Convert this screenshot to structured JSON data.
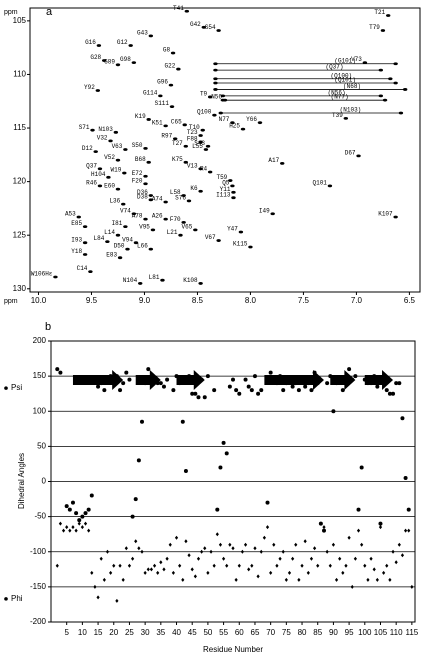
{
  "chart_data": [
    {
      "type": "scatter",
      "panel": "a",
      "xlabel": "ppm",
      "ylabel": "ppm",
      "xlim": [
        10.08,
        6.4
      ],
      "ylim": [
        103.8,
        130.3
      ],
      "xticks": [
        {
          "value": 10,
          "label": "10.0"
        },
        9.5,
        {
          "value": 9,
          "label": "9.0"
        },
        8.5,
        {
          "value": 8,
          "label": "8.0"
        },
        7.5,
        {
          "value": 7,
          "label": "7.0"
        },
        6.5
      ],
      "yticks": [
        105,
        110,
        115,
        120,
        125,
        130
      ],
      "peaks": [
        {
          "label": "T41",
          "x": 8.6,
          "y": 104.1
        },
        {
          "label": "T21",
          "x": 6.7,
          "y": 104.5
        },
        {
          "label": "G42",
          "x": 8.44,
          "y": 105.6
        },
        {
          "label": "S54",
          "x": 8.3,
          "y": 105.9
        },
        {
          "label": "T79",
          "x": 6.75,
          "y": 105.9
        },
        {
          "label": "G43",
          "x": 8.94,
          "y": 106.4
        },
        {
          "label": "G16",
          "x": 9.43,
          "y": 107.3
        },
        {
          "label": "G12",
          "x": 9.13,
          "y": 107.3
        },
        {
          "label": "G8",
          "x": 8.73,
          "y": 108.0
        },
        {
          "label": "G28",
          "x": 9.38,
          "y": 108.7
        },
        {
          "label": "G98",
          "x": 9.1,
          "y": 108.9
        },
        {
          "label": "G89",
          "x": 9.25,
          "y": 109.1
        },
        {
          "label": "V73",
          "x": 6.92,
          "y": 108.9
        },
        {
          "label": "G22",
          "x": 8.68,
          "y": 109.5
        },
        {
          "label": "G96",
          "x": 8.75,
          "y": 111.0
        },
        {
          "label": "Y92",
          "x": 9.44,
          "y": 111.5
        },
        {
          "label": "G114",
          "x": 8.85,
          "y": 112.0
        },
        {
          "label": "T9",
          "x": 8.38,
          "y": 112.1
        },
        {
          "label": "N56",
          "x": 8.24,
          "y": 112.4
        },
        {
          "label": "S111",
          "x": 8.74,
          "y": 113.0
        },
        {
          "label": "Q100",
          "x": 8.34,
          "y": 113.8
        },
        {
          "label": "T39",
          "x": 7.1,
          "y": 114.1
        },
        {
          "label": "K19",
          "x": 8.96,
          "y": 114.2
        },
        {
          "label": "N77",
          "x": 8.17,
          "y": 114.5
        },
        {
          "label": "Y66",
          "x": 7.91,
          "y": 114.5
        },
        {
          "label": "C65",
          "x": 8.62,
          "y": 114.7
        },
        {
          "label": "K51",
          "x": 8.8,
          "y": 114.8
        },
        {
          "label": "H25",
          "x": 8.07,
          "y": 115.1
        },
        {
          "label": "T10",
          "x": 8.45,
          "y": 115.2
        },
        {
          "label": "S71",
          "x": 9.49,
          "y": 115.2
        },
        {
          "label": "N103",
          "x": 9.27,
          "y": 115.4
        },
        {
          "label": "T23",
          "x": 8.47,
          "y": 115.7
        },
        {
          "label": "R97",
          "x": 8.71,
          "y": 116.0
        },
        {
          "label": "V32",
          "x": 9.32,
          "y": 116.2
        },
        {
          "label": "F88",
          "x": 8.47,
          "y": 116.3
        },
        {
          "label": "T27",
          "x": 8.61,
          "y": 116.7
        },
        {
          "label": "S43",
          "x": 8.4,
          "y": 116.7
        },
        {
          "label": "S50",
          "x": 8.99,
          "y": 116.9
        },
        {
          "label": "V63",
          "x": 9.18,
          "y": 117.0
        },
        {
          "label": "L55",
          "x": 8.42,
          "y": 117.0
        },
        {
          "label": "D12",
          "x": 9.46,
          "y": 117.2
        },
        {
          "label": "D67",
          "x": 6.98,
          "y": 117.6
        },
        {
          "label": "V52",
          "x": 9.25,
          "y": 118.0
        },
        {
          "label": "B68",
          "x": 8.96,
          "y": 118.2
        },
        {
          "label": "K75",
          "x": 8.61,
          "y": 118.2
        },
        {
          "label": "A17",
          "x": 7.7,
          "y": 118.3
        },
        {
          "label": "Q37",
          "x": 9.42,
          "y": 118.8
        },
        {
          "label": "V13",
          "x": 8.47,
          "y": 118.8
        },
        {
          "label": "R4",
          "x": 8.38,
          "y": 119.1
        },
        {
          "label": "W19",
          "x": 9.19,
          "y": 119.2
        },
        {
          "label": "E72",
          "x": 8.99,
          "y": 119.5
        },
        {
          "label": "H104",
          "x": 9.34,
          "y": 119.6
        },
        {
          "label": "T59",
          "x": 8.19,
          "y": 119.9
        },
        {
          "label": "F20",
          "x": 8.99,
          "y": 120.2
        },
        {
          "label": "Q101",
          "x": 7.25,
          "y": 120.4
        },
        {
          "label": "R46",
          "x": 9.42,
          "y": 120.4
        },
        {
          "label": "Q5",
          "x": 8.17,
          "y": 120.4
        },
        {
          "label": "E60",
          "x": 9.25,
          "y": 120.7
        },
        {
          "label": "K6",
          "x": 8.47,
          "y": 120.9
        },
        {
          "label": "Y11",
          "x": 8.16,
          "y": 121.0
        },
        {
          "label": "D36",
          "x": 8.94,
          "y": 121.3
        },
        {
          "label": "L58",
          "x": 8.63,
          "y": 121.3
        },
        {
          "label": "I113",
          "x": 8.16,
          "y": 121.5
        },
        {
          "label": "D38",
          "x": 8.94,
          "y": 121.7
        },
        {
          "label": "S76",
          "x": 8.58,
          "y": 121.8
        },
        {
          "label": "A74",
          "x": 8.8,
          "y": 121.9
        },
        {
          "label": "L36",
          "x": 9.2,
          "y": 122.1
        },
        {
          "label": "V74",
          "x": 9.1,
          "y": 123.0
        },
        {
          "label": "I49",
          "x": 7.79,
          "y": 123.0
        },
        {
          "label": "A53",
          "x": 9.62,
          "y": 123.3
        },
        {
          "label": "K107",
          "x": 6.63,
          "y": 123.3
        },
        {
          "label": "A78",
          "x": 8.99,
          "y": 123.5
        },
        {
          "label": "A26",
          "x": 8.8,
          "y": 123.5
        },
        {
          "label": "F70",
          "x": 8.63,
          "y": 123.8
        },
        {
          "label": "E85",
          "x": 9.56,
          "y": 124.2
        },
        {
          "label": "I81",
          "x": 9.18,
          "y": 124.2
        },
        {
          "label": "V95",
          "x": 8.92,
          "y": 124.5
        },
        {
          "label": "V65",
          "x": 8.52,
          "y": 124.5
        },
        {
          "label": "Y47",
          "x": 8.09,
          "y": 124.7
        },
        {
          "label": "L14",
          "x": 9.25,
          "y": 125.0
        },
        {
          "label": "L21",
          "x": 8.66,
          "y": 125.0
        },
        {
          "label": "V67",
          "x": 8.3,
          "y": 125.5
        },
        {
          "label": "L84",
          "x": 9.35,
          "y": 125.6
        },
        {
          "label": "I93",
          "x": 9.56,
          "y": 125.7
        },
        {
          "label": "V94",
          "x": 9.08,
          "y": 125.7
        },
        {
          "label": "K115",
          "x": 8.0,
          "y": 126.1
        },
        {
          "label": "D50",
          "x": 9.16,
          "y": 126.3
        },
        {
          "label": "L66",
          "x": 8.94,
          "y": 126.3
        },
        {
          "label": "Y18",
          "x": 9.56,
          "y": 126.8
        },
        {
          "label": "E83",
          "x": 9.23,
          "y": 127.1
        },
        {
          "label": "C14",
          "x": 9.51,
          "y": 128.4
        },
        {
          "label": "W106Hε",
          "x": 9.84,
          "y": 128.9
        },
        {
          "label": "L81",
          "x": 8.83,
          "y": 129.2
        },
        {
          "label": "N104",
          "x": 9.04,
          "y": 129.5
        },
        {
          "label": "K108",
          "x": 8.47,
          "y": 129.5
        }
      ],
      "sidechain_pairs": [
        {
          "label": "(G101)",
          "x": [
            8.33,
            6.63
          ],
          "y": 109.0
        },
        {
          "label": "(Q37)",
          "x": [
            8.33,
            6.77
          ],
          "y": 109.6
        },
        {
          "label": "(Q100)",
          "x": [
            8.33,
            6.68
          ],
          "y": 110.4
        },
        {
          "label": "(Q101)",
          "x": [
            8.33,
            6.63
          ],
          "y": 110.8
        },
        {
          "label": "(N68)",
          "x": [
            8.33,
            6.54
          ],
          "y": 111.4
        },
        {
          "label": "(N56)",
          "x": [
            8.26,
            6.77
          ],
          "y": 112.0
        },
        {
          "label": "(N77)",
          "x": [
            8.26,
            6.73
          ],
          "y": 112.4
        },
        {
          "label": "(N103)",
          "x": [
            8.28,
            6.58
          ],
          "y": 113.6
        }
      ]
    },
    {
      "type": "scatter",
      "panel": "b",
      "xlabel": "Residue Number",
      "ylabel": "Dihedral Angles",
      "xlim": [
        0,
        116
      ],
      "ylim": [
        -200,
        200
      ],
      "xticks": [
        5,
        10,
        15,
        20,
        25,
        30,
        35,
        40,
        45,
        50,
        55,
        60,
        65,
        70,
        75,
        80,
        85,
        90,
        95,
        100,
        105,
        110,
        115
      ],
      "yticks": [
        200,
        150,
        100,
        50,
        0,
        -50,
        -100,
        -150,
        -200
      ],
      "grid": [
        150,
        100,
        50,
        0,
        -50,
        -100,
        -150
      ],
      "strands": [
        [
          7,
          23
        ],
        [
          27,
          35
        ],
        [
          40,
          49
        ],
        [
          68,
          87
        ],
        [
          89,
          97
        ],
        [
          100,
          109
        ]
      ],
      "x": [
        1,
        2,
        3,
        4,
        5,
        6,
        7,
        8,
        9,
        10,
        11,
        12,
        13,
        14,
        15,
        16,
        17,
        18,
        19,
        20,
        21,
        22,
        23,
        24,
        25,
        26,
        27,
        28,
        29,
        30,
        31,
        32,
        33,
        34,
        35,
        36,
        37,
        38,
        39,
        40,
        41,
        42,
        43,
        44,
        45,
        46,
        47,
        48,
        49,
        50,
        51,
        52,
        53,
        54,
        55,
        56,
        57,
        58,
        59,
        60,
        61,
        62,
        63,
        64,
        65,
        66,
        67,
        68,
        69,
        70,
        71,
        72,
        73,
        74,
        75,
        76,
        77,
        78,
        79,
        80,
        81,
        82,
        83,
        84,
        85,
        86,
        87,
        88,
        89,
        90,
        91,
        92,
        93,
        94,
        95,
        96,
        97,
        98,
        99,
        100,
        101,
        102,
        103,
        104,
        105,
        106,
        107,
        108,
        109,
        110,
        111,
        112,
        113,
        114,
        115
      ],
      "series": [
        {
          "name": "Psi",
          "marker": "circle",
          "color": "#000000",
          "values": [
            null,
            160,
            155,
            null,
            -35,
            -40,
            -30,
            -45,
            -55,
            -50,
            -45,
            -40,
            -20,
            145,
            135,
            140,
            130,
            145,
            150,
            140,
            150,
            130,
            140,
            155,
            145,
            -50,
            -25,
            30,
            85,
            140,
            160,
            140,
            145,
            140,
            140,
            135,
            145,
            null,
            130,
            150,
            140,
            85,
            15,
            150,
            125,
            125,
            120,
            145,
            120,
            150,
            null,
            130,
            -40,
            20,
            55,
            40,
            135,
            145,
            130,
            125,
            null,
            145,
            135,
            130,
            150,
            125,
            130,
            null,
            -30,
            155,
            145,
            140,
            150,
            130,
            140,
            145,
            135,
            140,
            130,
            145,
            135,
            140,
            130,
            155,
            140,
            -60,
            -70,
            140,
            150,
            100,
            140,
            145,
            130,
            140,
            160,
            145,
            150,
            -40,
            20,
            145,
            140,
            140,
            150,
            135,
            -60,
            150,
            130,
            125,
            125,
            140,
            140,
            90,
            5,
            -40,
            null
          ]
        },
        {
          "name": "Phi",
          "marker": "diamond",
          "color": "#000000",
          "values": [
            null,
            -120,
            -60,
            -70,
            -65,
            -70,
            -65,
            -70,
            -60,
            -65,
            -60,
            -70,
            -130,
            -150,
            -165,
            -110,
            -140,
            -100,
            -130,
            -120,
            -170,
            -120,
            -140,
            -95,
            -120,
            -110,
            -85,
            -95,
            -100,
            -130,
            -125,
            -125,
            -120,
            -130,
            -115,
            -125,
            -110,
            -90,
            -130,
            -80,
            -120,
            -140,
            -85,
            -105,
            -125,
            -135,
            -110,
            -100,
            -95,
            -130,
            -100,
            -120,
            -75,
            -90,
            -110,
            -120,
            -90,
            -95,
            -140,
            -120,
            -100,
            -90,
            -125,
            -120,
            -95,
            -135,
            -100,
            -80,
            -65,
            -130,
            -90,
            -120,
            -110,
            -100,
            -140,
            -130,
            -110,
            -90,
            -140,
            -120,
            -85,
            -130,
            -110,
            -95,
            -120,
            -60,
            -65,
            -100,
            -120,
            -90,
            -140,
            -110,
            -130,
            -120,
            -80,
            -150,
            -110,
            -70,
            -90,
            -120,
            -140,
            -110,
            -125,
            -140,
            -65,
            -130,
            -120,
            -140,
            -100,
            -115,
            -90,
            -105,
            -70,
            -70,
            -150
          ]
        }
      ]
    }
  ]
}
